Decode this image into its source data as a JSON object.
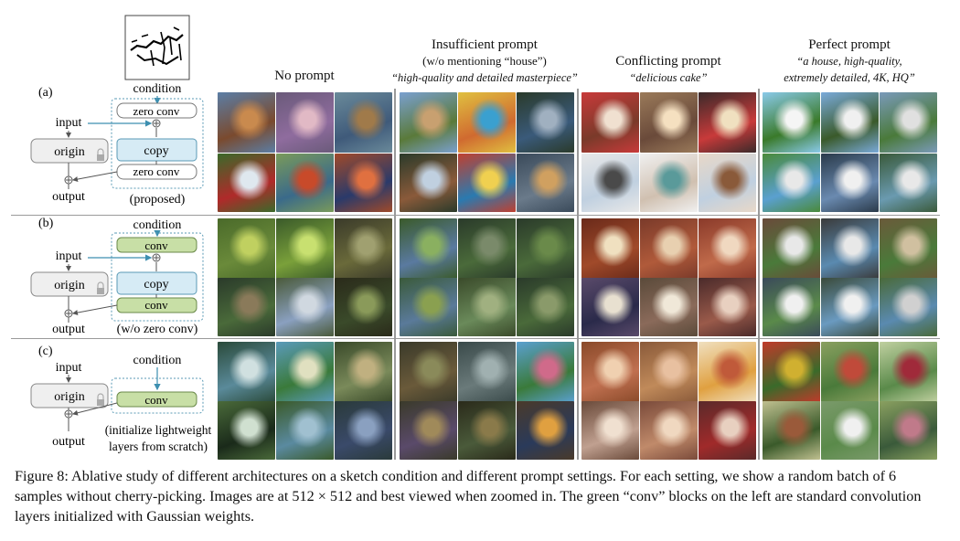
{
  "columns": [
    {
      "title": "No prompt",
      "subtitle": "",
      "prompt": ""
    },
    {
      "title": "Insufficient prompt",
      "subtitle": "(w/o mentioning “house”)",
      "prompt": "“high-quality and detailed masterpiece”"
    },
    {
      "title": "Conflicting prompt",
      "subtitle": "",
      "prompt": "“delicious cake”"
    },
    {
      "title": "Perfect prompt",
      "subtitle": "",
      "prompt_line1": "“a house, high-quality,",
      "prompt_line2": "extremely detailed, 4K, HQ”"
    }
  ],
  "rows": [
    {
      "label": "(a)",
      "condition": "condition",
      "input": "input",
      "origin": "origin",
      "output": "output",
      "block_top": "zero conv",
      "block_mid": "copy",
      "block_bot": "zero conv",
      "note": "(proposed)"
    },
    {
      "label": "(b)",
      "condition": "condition",
      "input": "input",
      "origin": "origin",
      "output": "output",
      "block_top": "conv",
      "block_mid": "copy",
      "block_bot": "conv",
      "note": "(w/o zero conv)"
    },
    {
      "label": "(c)",
      "condition": "condition",
      "input": "input",
      "origin": "origin",
      "output": "output",
      "block_top": "conv",
      "note_line1": "(initialize lightweight",
      "note_line2": "layers from scratch)"
    }
  ],
  "caption": "Figure 8: Ablative study of different architectures on a sketch condition and different prompt settings. For each setting, we show a random batch of 6 samples without cherry-picking. Images are at 512 × 512 and best viewed when zoomed in. The green “conv” blocks on the left are standard convolution layers initialized with Gaussian weights.",
  "colors": {
    "copy_block": "#d6ebf5",
    "conv_block": "#c8dfa6",
    "origin_block": "#efefef",
    "dashed_box": "#5a9ab5",
    "arrow": "#3d8fb0"
  },
  "tile_palettes": {
    "a": [
      [
        "#7a4a2e",
        "#c98a4e",
        "#5b7ea6"
      ],
      [
        "#8f6c9e",
        "#e1b9c5",
        "#6a5a7a"
      ],
      [
        "#3f5a7a",
        "#a07a4a",
        "#6a8a9a"
      ],
      [
        "#b02a2a",
        "#f0d5a0",
        "#3a6a2a"
      ],
      [
        "#3a8a3a",
        "#ffe04a",
        "#d04a4a"
      ],
      [
        "#e9a040",
        "#2a3a5a",
        "#c04a2a"
      ],
      [
        "#7a3a2a",
        "#f0e0d0",
        "#c83a3a"
      ],
      [
        "#6a4a3a",
        "#f5e0c0",
        "#9a7a5a"
      ],
      [
        "#c83a3a",
        "#f0e0c0",
        "#3a2a2a"
      ],
      [
        "#2a6a3a",
        "#f5f5f5",
        "#8acaea"
      ],
      [
        "#3a5a2a",
        "#f0f0f0",
        "#7aaada"
      ],
      [
        "#4a7a3a",
        "#e0e0e0",
        "#7a9aba"
      ],
      [
        "#5a7a9a",
        "#e8e8e8",
        "#6a6a5a"
      ],
      [
        "#4a6a9a",
        "#f0f0f0",
        "#3a5a3a"
      ],
      [
        "#8a4a2a",
        "#d0d8e0",
        "#2a2a3a"
      ],
      [
        "#2a7ab0",
        "#f0d050",
        "#c04030"
      ],
      [
        "#c0d0e0",
        "#4a4a4a",
        "#e8e8e8"
      ],
      [
        "#d0c0b0",
        "#5a4a3a",
        "#f0f0f0"
      ],
      [
        "#c0d0e0",
        "#3a3a3a",
        "#6a9a6a"
      ],
      [
        "#5aa0d0",
        "#e8e8e8",
        "#4a8a3a"
      ],
      [
        "#6a8ab0",
        "#f0f0f0",
        "#2a3a4a"
      ],
      [
        "#3a6a2a",
        "#f0f0f0",
        "#90c0e0"
      ],
      [
        "#6a8ab0",
        "#f0f0f0",
        "#2a3a5a"
      ],
      [
        "#3a5a8a",
        "#e8e8e8",
        "#4a7a3a"
      ]
    ]
  }
}
